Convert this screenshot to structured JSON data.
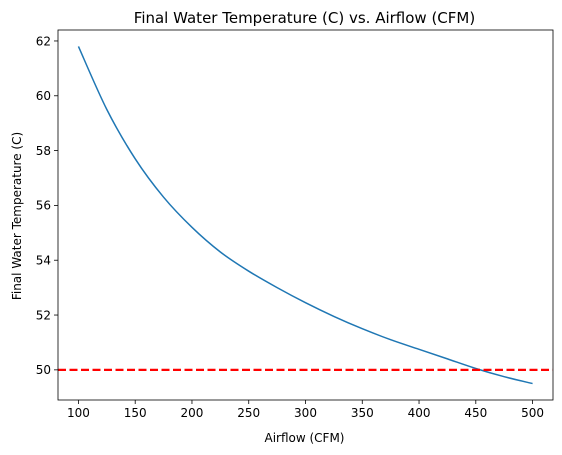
{
  "chart_data": {
    "type": "line",
    "title": "Final Water Temperature (C) vs. Airflow (CFM)",
    "xlabel": "Airflow (CFM)",
    "ylabel": "Final Water Temperature (C)",
    "xlim": [
      82,
      518
    ],
    "ylim": [
      48.9,
      62.4
    ],
    "xticks": [
      100,
      150,
      200,
      250,
      300,
      350,
      400,
      450,
      500
    ],
    "yticks": [
      50,
      52,
      54,
      56,
      58,
      60,
      62
    ],
    "grid": false,
    "series": [
      {
        "color": "#1f77b4",
        "x": [
          100,
          125,
          150,
          175,
          200,
          225,
          250,
          275,
          300,
          325,
          350,
          375,
          400,
          425,
          450,
          475,
          500
        ],
        "y": [
          61.8,
          59.5,
          57.7,
          56.3,
          55.2,
          54.3,
          53.6,
          53.0,
          52.45,
          51.95,
          51.5,
          51.1,
          50.75,
          50.4,
          50.05,
          49.75,
          49.5
        ]
      }
    ],
    "reference_lines": [
      {
        "orientation": "horizontal",
        "y": 50,
        "color": "#ff0000",
        "style": "dashed"
      }
    ]
  }
}
